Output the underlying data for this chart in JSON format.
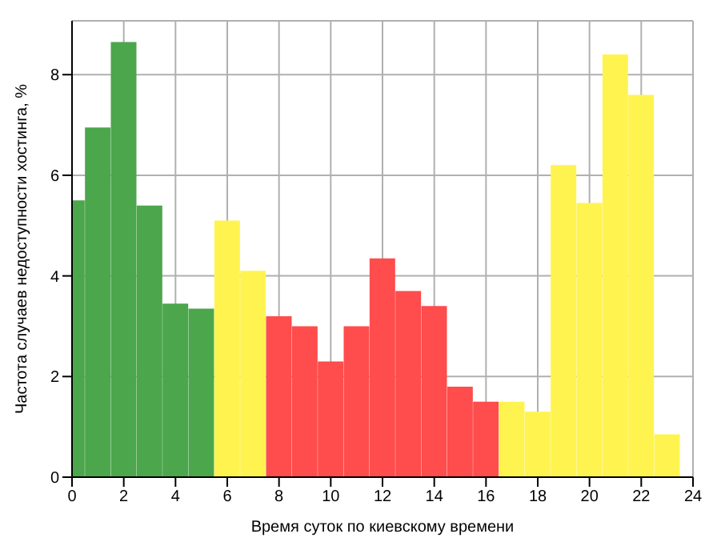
{
  "chart_data": {
    "type": "histogram",
    "xlabel": "Время суток по киевскому времени",
    "ylabel": "Частота случаев недоступности хостинга, %",
    "bins": [
      -0.5,
      0.5,
      1.5,
      2.5,
      3.5,
      4.5,
      5.5,
      6.5,
      7.5,
      8.5,
      9.5,
      10.5,
      11.5,
      12.5,
      13.5,
      14.5,
      15.5,
      16.5,
      17.5,
      18.5,
      19.5,
      20.5,
      21.5,
      22.5,
      23.5
    ],
    "values": [
      5.5,
      6.95,
      8.65,
      5.4,
      3.45,
      3.35,
      5.1,
      4.1,
      3.2,
      3.0,
      2.3,
      3.0,
      4.35,
      3.7,
      3.4,
      1.8,
      1.5,
      1.5,
      1.3,
      6.2,
      5.45,
      8.4,
      7.6,
      0.85
    ],
    "colors": [
      "#4ca64c",
      "#4ca64c",
      "#4ca64c",
      "#4ca64c",
      "#4ca64c",
      "#4ca64c",
      "#fff44f",
      "#fff44f",
      "#ff4c4c",
      "#ff4c4c",
      "#ff4c4c",
      "#ff4c4c",
      "#ff4c4c",
      "#ff4c4c",
      "#ff4c4c",
      "#ff4c4c",
      "#ff4c4c",
      "#fff44f",
      "#fff44f",
      "#fff44f",
      "#fff44f",
      "#fff44f",
      "#fff44f",
      "#fff44f"
    ],
    "xlim": [
      0,
      24
    ],
    "xticks": [
      0,
      2,
      4,
      6,
      8,
      10,
      12,
      14,
      16,
      18,
      20,
      22,
      24
    ],
    "ylim": [
      0,
      9.07
    ],
    "yticks": [
      0,
      2,
      4,
      6,
      8
    ],
    "grid": true
  }
}
